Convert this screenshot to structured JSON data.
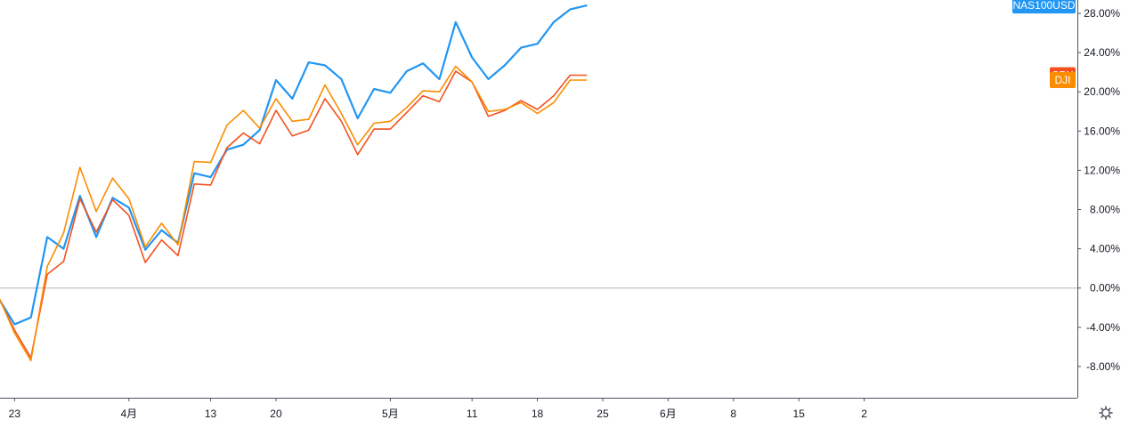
{
  "chart_data": {
    "type": "line",
    "title": "",
    "xlabel": "",
    "ylabel": "",
    "y_unit": "%",
    "ylim": [
      -10.5,
      29.5
    ],
    "y_ticks": [
      "28.00%",
      "24.00%",
      "20.00%",
      "16.00%",
      "12.00%",
      "8.00%",
      "4.00%",
      "0.00%",
      "-4.00%",
      "-8.00%"
    ],
    "y_tick_values": [
      28,
      24,
      20,
      16,
      12,
      8,
      4,
      0,
      -4,
      -8
    ],
    "x_ticks": [
      "23",
      "4月",
      "13",
      "20",
      "5月",
      "11",
      "18",
      "25",
      "6月",
      "8",
      "15",
      "2"
    ],
    "x_tick_index": [
      1,
      8,
      13,
      17,
      24,
      29,
      33,
      37,
      41,
      45,
      49,
      53
    ],
    "baseline": 0,
    "grid": false,
    "legend": "right-axis badges",
    "series": [
      {
        "name": "NAS100USD",
        "color": "#2196f3",
        "values": [
          -1.0,
          -3.7,
          -3.0,
          5.2,
          4.0,
          9.4,
          5.2,
          9.2,
          8.2,
          3.9,
          5.9,
          4.6,
          11.7,
          11.3,
          14.1,
          14.6,
          16.1,
          21.2,
          19.3,
          23.0,
          22.7,
          21.3,
          17.3,
          20.3,
          19.9,
          22.1,
          22.9,
          21.3,
          27.1,
          23.5,
          21.3,
          22.7,
          24.5,
          24.9,
          27.1,
          28.4,
          28.8
        ]
      },
      {
        "name": "SPX",
        "color": "#f4511e",
        "values": [
          -0.9,
          -4.3,
          -7.1,
          1.4,
          2.7,
          9.1,
          5.7,
          9.0,
          7.4,
          2.6,
          4.9,
          3.3,
          10.6,
          10.5,
          14.3,
          15.8,
          14.7,
          18.1,
          15.5,
          16.1,
          19.3,
          17.0,
          13.6,
          16.2,
          16.2,
          17.9,
          19.6,
          19.0,
          22.1,
          21.0,
          17.5,
          18.1,
          19.1,
          18.2,
          19.6,
          21.7,
          21.7
        ]
      },
      {
        "name": "DJI",
        "color": "#fb8c00",
        "values": [
          -0.8,
          -4.6,
          -7.4,
          2.2,
          5.6,
          12.3,
          7.8,
          11.2,
          9.1,
          4.2,
          6.6,
          4.4,
          12.9,
          12.8,
          16.6,
          18.1,
          16.3,
          19.3,
          17.0,
          17.2,
          20.7,
          17.8,
          14.6,
          16.8,
          17.0,
          18.4,
          20.1,
          20.0,
          22.6,
          21.0,
          18.0,
          18.2,
          18.9,
          17.8,
          18.9,
          21.2,
          21.2
        ]
      }
    ]
  },
  "ui": {
    "settings_icon": "gear-icon"
  }
}
